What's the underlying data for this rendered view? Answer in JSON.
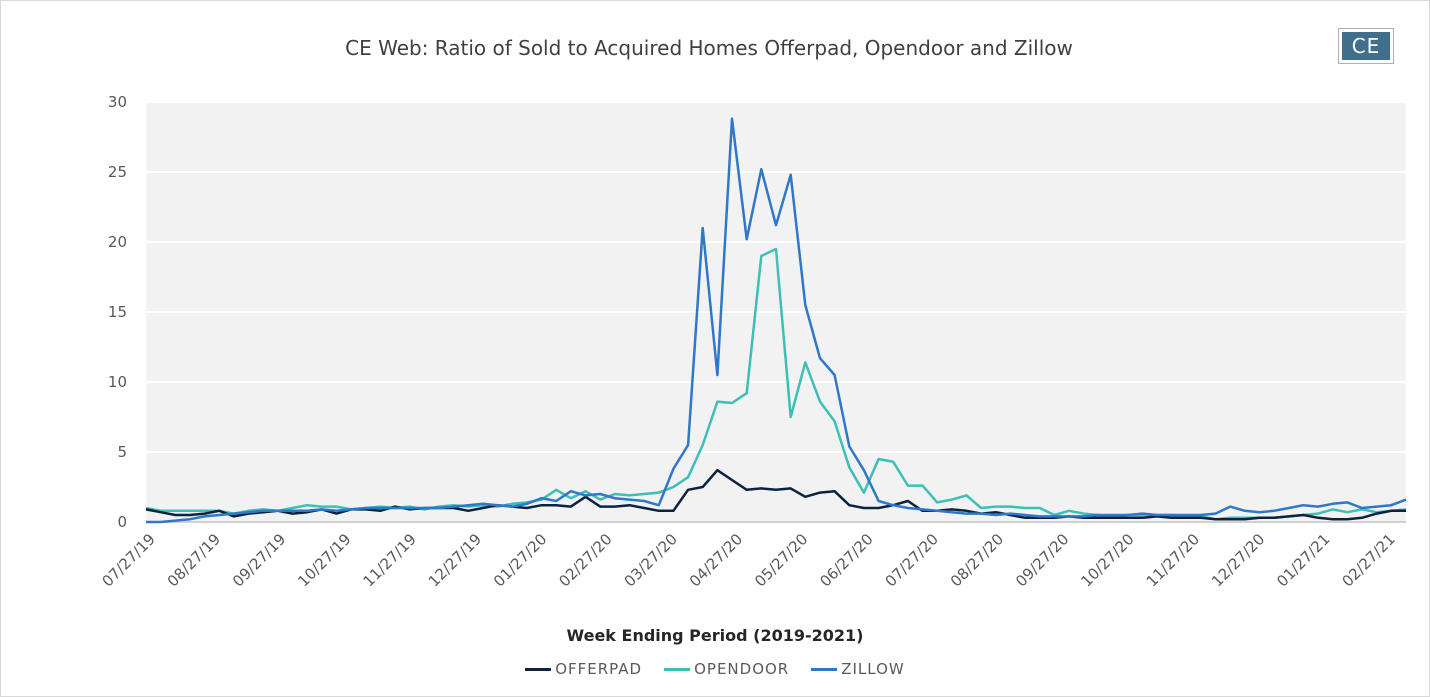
{
  "logo_text": "CE",
  "chart_data": {
    "type": "line",
    "title": "CE Web: Ratio of Sold to Acquired Homes Offerpad, Opendoor and Zillow",
    "xlabel": "Week Ending Period (2019-2021)",
    "ylabel": "",
    "ylim": [
      0,
      30
    ],
    "yticks": [
      0,
      5,
      10,
      15,
      20,
      25,
      30
    ],
    "xtick_labels": [
      "07/27/19",
      "08/27/19",
      "09/27/19",
      "10/27/19",
      "11/27/19",
      "12/27/19",
      "01/27/20",
      "02/27/20",
      "03/27/20",
      "04/27/20",
      "05/27/20",
      "06/27/20",
      "07/27/20",
      "08/27/20",
      "09/27/20",
      "10/27/20",
      "11/27/20",
      "12/27/20",
      "01/27/21",
      "02/27/21"
    ],
    "grid": true,
    "legend_position": "bottom",
    "series": [
      {
        "name": "OFFERPAD",
        "color": "#0d2240",
        "values": [
          0.9,
          0.7,
          0.5,
          0.5,
          0.6,
          0.8,
          0.4,
          0.6,
          0.7,
          0.8,
          0.6,
          0.7,
          0.9,
          0.6,
          0.9,
          0.9,
          0.8,
          1.1,
          0.9,
          1.0,
          1.0,
          1.0,
          0.8,
          1.0,
          1.2,
          1.1,
          1.0,
          1.2,
          1.2,
          1.1,
          1.8,
          1.1,
          1.1,
          1.2,
          1.0,
          0.8,
          0.8,
          2.3,
          2.5,
          3.7,
          3.0,
          2.3,
          2.4,
          2.3,
          2.4,
          1.8,
          2.1,
          2.2,
          1.2,
          1.0,
          1.0,
          1.2,
          1.5,
          0.8,
          0.8,
          0.9,
          0.8,
          0.6,
          0.7,
          0.5,
          0.3,
          0.3,
          0.3,
          0.4,
          0.3,
          0.3,
          0.3,
          0.3,
          0.3,
          0.4,
          0.3,
          0.3,
          0.3,
          0.2,
          0.2,
          0.2,
          0.3,
          0.3,
          0.4,
          0.5,
          0.3,
          0.2,
          0.2,
          0.3,
          0.6,
          0.8,
          0.8
        ]
      },
      {
        "name": "OPENDOOR",
        "color": "#3dbfb8",
        "values": [
          1.0,
          0.8,
          0.8,
          0.8,
          0.8,
          0.8,
          0.6,
          0.8,
          0.9,
          0.8,
          1.0,
          1.2,
          1.1,
          1.1,
          0.9,
          1.0,
          1.1,
          1.0,
          1.1,
          0.9,
          1.1,
          1.2,
          1.1,
          1.2,
          1.1,
          1.3,
          1.4,
          1.6,
          2.3,
          1.7,
          2.2,
          1.6,
          2.0,
          1.9,
          2.0,
          2.1,
          2.5,
          3.2,
          5.5,
          8.6,
          8.5,
          9.2,
          19.0,
          19.5,
          7.5,
          11.4,
          8.6,
          7.2,
          3.9,
          2.1,
          4.5,
          4.3,
          2.6,
          2.6,
          1.4,
          1.6,
          1.9,
          1.0,
          1.1,
          1.1,
          1.0,
          1.0,
          0.5,
          0.8,
          0.6,
          0.5,
          0.4,
          0.5,
          0.5,
          0.5,
          0.5,
          0.4,
          0.4,
          0.2,
          0.3,
          0.3,
          0.3,
          0.3,
          0.4,
          0.5,
          0.6,
          0.9,
          0.7,
          0.9,
          0.7,
          0.8,
          0.9
        ]
      },
      {
        "name": "ZILLOW",
        "color": "#2f78c8",
        "values": [
          0.0,
          0.0,
          0.1,
          0.2,
          0.4,
          0.5,
          0.6,
          0.7,
          0.8,
          0.8,
          0.8,
          0.8,
          0.9,
          0.8,
          0.9,
          1.0,
          1.0,
          1.0,
          1.0,
          1.0,
          1.0,
          1.1,
          1.2,
          1.3,
          1.2,
          1.1,
          1.3,
          1.7,
          1.5,
          2.2,
          1.9,
          2.0,
          1.7,
          1.6,
          1.5,
          1.2,
          3.8,
          5.5,
          21.0,
          10.5,
          28.8,
          20.2,
          25.2,
          21.2,
          24.8,
          15.5,
          11.7,
          10.5,
          5.4,
          3.7,
          1.5,
          1.2,
          1.0,
          0.9,
          0.8,
          0.7,
          0.6,
          0.6,
          0.5,
          0.6,
          0.5,
          0.4,
          0.4,
          0.4,
          0.4,
          0.5,
          0.5,
          0.5,
          0.6,
          0.5,
          0.5,
          0.5,
          0.5,
          0.6,
          1.1,
          0.8,
          0.7,
          0.8,
          1.0,
          1.2,
          1.1,
          1.3,
          1.4,
          1.0,
          1.1,
          1.2,
          1.6
        ]
      }
    ]
  }
}
